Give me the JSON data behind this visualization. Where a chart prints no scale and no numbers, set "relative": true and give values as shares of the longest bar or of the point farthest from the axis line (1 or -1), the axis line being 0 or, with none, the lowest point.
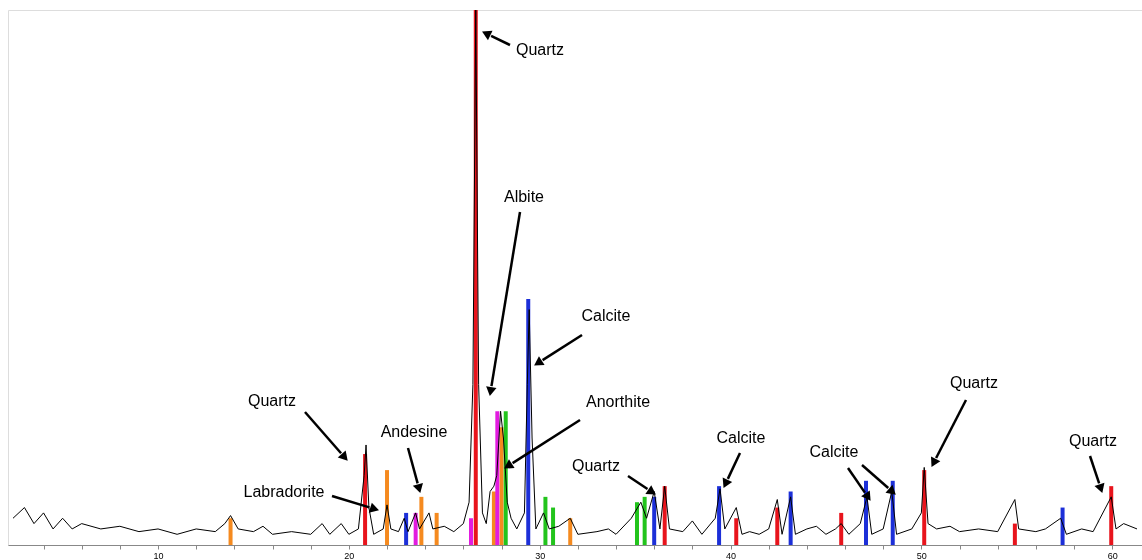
{
  "chart_data": {
    "type": "line",
    "relative": true,
    "xlim": [
      2.4,
      61.3
    ],
    "xticks": [
      {
        "value": 4,
        "label": null
      },
      {
        "value": 6,
        "label": null
      },
      {
        "value": 8,
        "label": null
      },
      10,
      {
        "value": 12,
        "label": null
      },
      {
        "value": 14,
        "label": null
      },
      {
        "value": 16,
        "label": null
      },
      {
        "value": 18,
        "label": null
      },
      20,
      {
        "value": 22,
        "label": null
      },
      {
        "value": 24,
        "label": null
      },
      {
        "value": 26,
        "label": null
      },
      {
        "value": 28,
        "label": null
      },
      30,
      {
        "value": 32,
        "label": null
      },
      {
        "value": 34,
        "label": null
      },
      {
        "value": 36,
        "label": null
      },
      {
        "value": 38,
        "label": null
      },
      40,
      {
        "value": 42,
        "label": null
      },
      {
        "value": 44,
        "label": null
      },
      {
        "value": 46,
        "label": null
      },
      {
        "value": 48,
        "label": null
      },
      50,
      {
        "value": 52,
        "label": null
      },
      {
        "value": 54,
        "label": null
      },
      {
        "value": 56,
        "label": null
      },
      {
        "value": 58,
        "label": null
      },
      60
    ],
    "series": [
      {
        "color": "#000000",
        "x": [
          2.4,
          3,
          3.5,
          4,
          4.5,
          5,
          5.5,
          6,
          7,
          8,
          9,
          10,
          11,
          12,
          13,
          13.5,
          13.8,
          14.2,
          15,
          15.5,
          16,
          17,
          18,
          18.6,
          19,
          19.6,
          20,
          20.5,
          20.8,
          20.9,
          21.05,
          21.3,
          21.8,
          22.0,
          22.2,
          22.6,
          22.9,
          23.1,
          23.5,
          23.7,
          24.2,
          24.4,
          25.0,
          25.5,
          26.0,
          26.3,
          26.5,
          26.65,
          26.8,
          27.0,
          27.2,
          27.4,
          27.6,
          27.75,
          27.95,
          28.1,
          28.3,
          28.5,
          28.8,
          29.2,
          29.35,
          29.45,
          29.6,
          29.8,
          30.2,
          30.5,
          31,
          31.6,
          32,
          33,
          33.6,
          34,
          34.8,
          35.3,
          35.6,
          36.0,
          36.3,
          36.55,
          36.8,
          37.5,
          38,
          38.5,
          39.2,
          39.45,
          39.7,
          40.3,
          40.6,
          41,
          41.5,
          42,
          42.45,
          42.7,
          43.15,
          43.4,
          44,
          44.5,
          45,
          45.5,
          45.8,
          46.2,
          46.8,
          47.15,
          47.4,
          48.0,
          48.45,
          48.7,
          49.5,
          50.0,
          50.15,
          50.35,
          50.8,
          51.5,
          52,
          53,
          54,
          54.9,
          55.1,
          56,
          56.5,
          57.3,
          57.6,
          58.4,
          59,
          59.95,
          60.2,
          60.6,
          61.3
        ],
        "values": [
          0.05,
          0.07,
          0.04,
          0.06,
          0.03,
          0.05,
          0.03,
          0.04,
          0.03,
          0.035,
          0.025,
          0.03,
          0.02,
          0.03,
          0.025,
          0.04,
          0.055,
          0.03,
          0.025,
          0.035,
          0.02,
          0.025,
          0.02,
          0.04,
          0.02,
          0.04,
          0.02,
          0.03,
          0.13,
          0.187,
          0.07,
          0.02,
          0.03,
          0.075,
          0.03,
          0.025,
          0.05,
          0.025,
          0.06,
          0.03,
          0.06,
          0.03,
          0.035,
          0.025,
          0.04,
          0.08,
          0.3,
          1.0,
          0.3,
          0.06,
          0.04,
          0.1,
          0.11,
          0.13,
          0.25,
          0.2,
          0.08,
          0.05,
          0.03,
          0.06,
          0.3,
          0.44,
          0.2,
          0.03,
          0.06,
          0.03,
          0.035,
          0.05,
          0.02,
          0.025,
          0.03,
          0.02,
          0.05,
          0.08,
          0.05,
          0.1,
          0.03,
          0.11,
          0.03,
          0.025,
          0.045,
          0.02,
          0.05,
          0.105,
          0.03,
          0.07,
          0.02,
          0.025,
          0.02,
          0.03,
          0.085,
          0.02,
          0.09,
          0.02,
          0.03,
          0.035,
          0.02,
          0.03,
          0.04,
          0.02,
          0.04,
          0.09,
          0.02,
          0.03,
          0.1,
          0.02,
          0.03,
          0.06,
          0.145,
          0.04,
          0.03,
          0.035,
          0.025,
          0.03,
          0.025,
          0.085,
          0.03,
          0.025,
          0.03,
          0.05,
          0.02,
          0.03,
          0.025,
          0.09,
          0.03,
          0.04,
          0.03
        ]
      },
      {
        "type": "bar",
        "color": "#e8141c",
        "x": [
          20.85,
          26.65,
          36.55,
          40.3,
          42.45,
          45.8,
          50.15,
          54.9,
          59.95
        ],
        "values": [
          0.17,
          1.0,
          0.11,
          0.05,
          0.07,
          0.06,
          0.14,
          0.04,
          0.11
        ]
      },
      {
        "type": "bar",
        "color": "#1c2fd8",
        "x": [
          23.0,
          29.4,
          36.0,
          39.4,
          43.15,
          47.1,
          48.5,
          57.4
        ],
        "values": [
          0.06,
          0.46,
          0.09,
          0.11,
          0.1,
          0.12,
          0.12,
          0.07
        ]
      },
      {
        "type": "bar",
        "color": "#f58a1f",
        "x": [
          13.8,
          22.0,
          23.8,
          24.6,
          27.6,
          28.0,
          31.6
        ],
        "values": [
          0.05,
          0.14,
          0.09,
          0.06,
          0.1,
          0.22,
          0.05
        ]
      },
      {
        "type": "bar",
        "color": "#22c41c",
        "x": [
          28.22,
          30.3,
          30.7,
          35.1,
          35.5
        ],
        "values": [
          0.25,
          0.09,
          0.07,
          0.08,
          0.09
        ]
      },
      {
        "type": "bar",
        "color": "#e21ce0",
        "x": [
          23.5,
          26.4,
          27.78
        ],
        "values": [
          0.06,
          0.05,
          0.25
        ]
      }
    ],
    "annotations": [
      "Quartz",
      "Albite",
      "Calcite",
      "Anorthite",
      "Quartz",
      "Andesine",
      "Labradorite",
      "Quartz",
      "Calcite",
      "Calcite",
      "Quartz",
      "Quartz"
    ]
  }
}
